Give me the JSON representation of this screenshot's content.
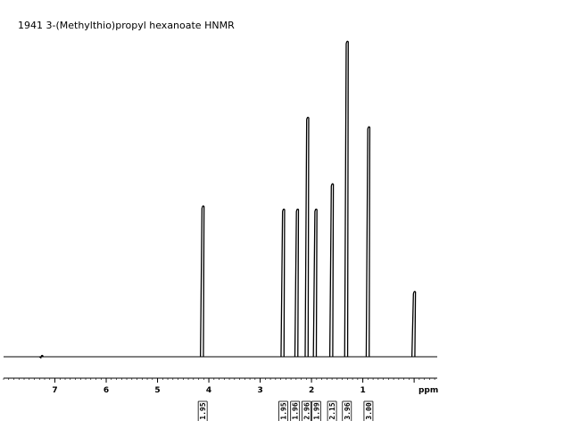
{
  "chart_data": {
    "type": "line",
    "title": "1941  3-(Methylthio)propyl hexanoate  HNMR",
    "xlabel": "ppm",
    "xlim": [
      8.0,
      -0.45
    ],
    "ylim": [
      0,
      100
    ],
    "x_reversed": true,
    "grid": false,
    "ticks": [
      7,
      6,
      5,
      4,
      3,
      2,
      1,
      0
    ],
    "tick_labels": [
      "7",
      "6",
      "5",
      "4",
      "3",
      "2",
      "1",
      "ppm"
    ],
    "unit_label": "ppm",
    "peaks": [
      {
        "ppm": 7.26,
        "height": 0.8
      },
      {
        "ppm": 4.12,
        "height": 48
      },
      {
        "ppm": 2.55,
        "height": 47
      },
      {
        "ppm": 2.28,
        "height": 47
      },
      {
        "ppm": 2.08,
        "height": 76
      },
      {
        "ppm": 1.92,
        "height": 47
      },
      {
        "ppm": 1.6,
        "height": 55
      },
      {
        "ppm": 1.31,
        "height": 100
      },
      {
        "ppm": 0.89,
        "height": 73
      },
      {
        "ppm": 0.0,
        "height": 21
      }
    ],
    "integrals": [
      {
        "label": "1.95",
        "ppm": 4.12
      },
      {
        "label": "1.95",
        "ppm": 2.55
      },
      {
        "label": "1.96",
        "ppm": 2.32
      },
      {
        "label": "2.96",
        "ppm": 2.1
      },
      {
        "label": "1.99",
        "ppm": 1.92
      },
      {
        "label": "2.15",
        "ppm": 1.6
      },
      {
        "label": "3.96",
        "ppm": 1.31
      },
      {
        "label": "3.00",
        "ppm": 0.89
      }
    ]
  }
}
